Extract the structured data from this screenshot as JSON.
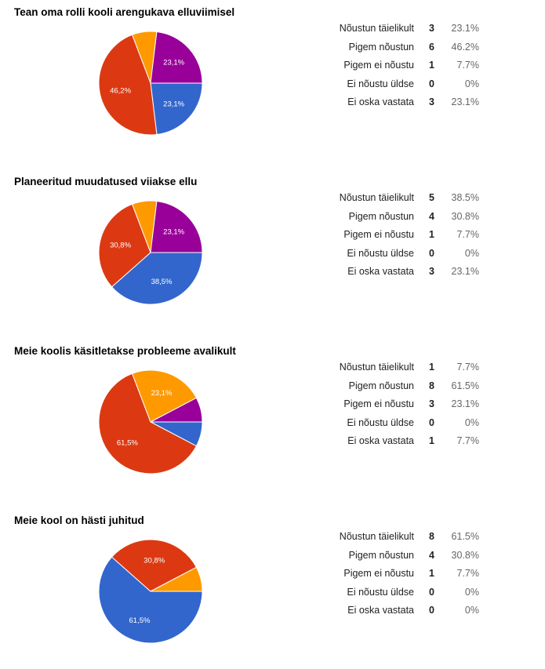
{
  "colors": {
    "Nõustun täielikult": "#3366cc",
    "Pigem nõustun": "#dc3912",
    "Pigem ei nõustu": "#ff9900",
    "Ei nõustu üldse": "#109618",
    "Ei oska vastata": "#990099"
  },
  "chart_data": [
    {
      "type": "pie",
      "title": "Tean oma rolli kooli arengukava elluviimisel",
      "categories": [
        "Nõustun täielikult",
        "Pigem nõustun",
        "Pigem ei nõustu",
        "Ei nõustu üldse",
        "Ei oska vastata"
      ],
      "values": [
        3,
        6,
        1,
        0,
        3
      ],
      "percents": [
        "23.1%",
        "46.2%",
        "7.7%",
        "0%",
        "23.1%"
      ],
      "slice_labels": [
        "23,1%",
        "46,2%",
        "",
        "",
        "23,1%"
      ]
    },
    {
      "type": "pie",
      "title": "Planeeritud muudatused viiakse ellu",
      "categories": [
        "Nõustun täielikult",
        "Pigem nõustun",
        "Pigem ei nõustu",
        "Ei nõustu üldse",
        "Ei oska vastata"
      ],
      "values": [
        5,
        4,
        1,
        0,
        3
      ],
      "percents": [
        "38.5%",
        "30.8%",
        "7.7%",
        "0%",
        "23.1%"
      ],
      "slice_labels": [
        "38,5%",
        "30,8%",
        "",
        "",
        "23,1%"
      ]
    },
    {
      "type": "pie",
      "title": "Meie koolis käsitletakse probleeme avalikult",
      "categories": [
        "Nõustun täielikult",
        "Pigem nõustun",
        "Pigem ei nõustu",
        "Ei nõustu üldse",
        "Ei oska vastata"
      ],
      "values": [
        1,
        8,
        3,
        0,
        1
      ],
      "percents": [
        "7.7%",
        "61.5%",
        "23.1%",
        "0%",
        "7.7%"
      ],
      "slice_labels": [
        "",
        "61,5%",
        "23,1%",
        "",
        ""
      ]
    },
    {
      "type": "pie",
      "title": "Meie kool on hästi juhitud",
      "categories": [
        "Nõustun täielikult",
        "Pigem nõustun",
        "Pigem ei nõustu",
        "Ei nõustu üldse",
        "Ei oska vastata"
      ],
      "values": [
        8,
        4,
        1,
        0,
        0
      ],
      "percents": [
        "61.5%",
        "30.8%",
        "7.7%",
        "0%",
        "0%"
      ],
      "slice_labels": [
        "61,5%",
        "30,8%",
        "",
        "",
        ""
      ]
    }
  ]
}
